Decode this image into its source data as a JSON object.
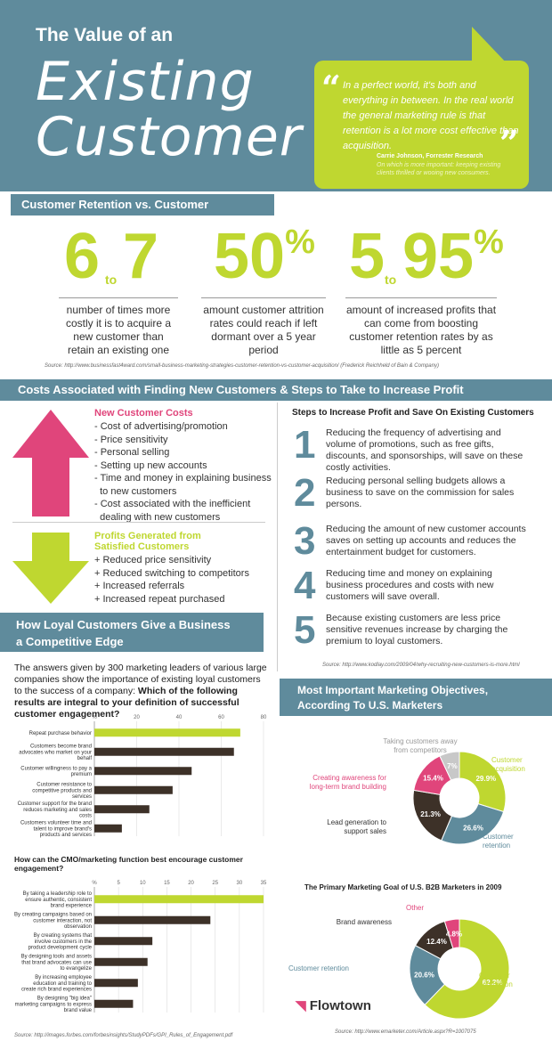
{
  "header": {
    "title_small": "The Value of an",
    "title_line1": "Existing",
    "title_line2": "Customer",
    "quote": "In a perfect world, it's both and everything in between. In the real world the general marketing rule is that retention is a lot more cost effective than acquisition.",
    "author": "Carrie Johnson, Forrester Research",
    "author_sub": "On which is more important: keeping existing clients thrilled or wooing new consumers."
  },
  "section1": {
    "title": "Customer Retention vs. Customer Acquisition",
    "stats": [
      {
        "a": "6",
        "to": "to",
        "b": "7",
        "desc": "number of times more costly it is to acquire a new customer than retain an existing one"
      },
      {
        "a": "50",
        "pct": "%",
        "desc": "amount customer attrition rates could reach if left dormant over a 5 year period"
      },
      {
        "a": "5",
        "to": "to",
        "b": "95",
        "pct": "%",
        "desc": "amount of increased profits that can come from boosting customer retention rates by as little as 5 percent"
      }
    ],
    "source": "Source: http://www.businessfast4ward.com/small-business-marketing-strategies-customer-retention-vs-customer-acquisition/ (Frederick Reichheld of Bain & Company)"
  },
  "section2": {
    "title": "Costs Associated with Finding New Customers & Steps to Take to Increase Profit",
    "costs_head": "New Customer Costs",
    "costs": [
      "- Cost of advertising/promotion",
      "- Price sensitivity",
      "- Personal selling",
      "- Setting up new accounts",
      "- Time and money in explaining business",
      "  to new customers",
      "- Cost associated with the inefficient",
      "  dealing with new customers"
    ],
    "profits_head1": "Profits Generated from",
    "profits_head2": "Satisfied Customers",
    "profits": [
      "+ Reduced price sensitivity",
      "+ Reduced switching to competitors",
      "+ Increased referrals",
      "+ Increased repeat purchased"
    ],
    "steps_title": "Steps to Increase Profit and Save On Existing Customers",
    "steps": [
      {
        "n": "1",
        "t": "Reducing the frequency of advertising and volume of promotions, such as free gifts, discounts, and sponsorships, will save on these costly activities."
      },
      {
        "n": "2",
        "t": "Reducing personal selling budgets allows a business to save on the commission for sales persons."
      },
      {
        "n": "3",
        "t": "Reducing the amount of new customer accounts saves on setting up accounts and reduces the entertainment budget for customers."
      },
      {
        "n": "4",
        "t": "Reducing time and money on explaining business procedures and costs with new customers will save overall."
      },
      {
        "n": "5",
        "t": "Because existing customers are less price sensitive revenues increase by charging the premium to loyal customers."
      }
    ],
    "steps_source": "Source: http://www.kodlay.com/2009/04/why-recruiting-new-customers-is-more.html"
  },
  "section3": {
    "title1": "How Loyal Customers Give a Business",
    "title2": "a Competitive Edge",
    "intro": "The answers given by 300 marketing leaders of various large companies show the importance of existing loyal customers to the success of a company: ",
    "intro_bold": "Which of the following results are integral to your definition of successful customer engagement?",
    "chart2_title": "How can the CMO/marketing function best encourage customer engagement?",
    "source": "Source: http://images.forbes.com/forbesinsights/StudyPDFs/GPI_Rules_of_Engagement.pdf"
  },
  "section4": {
    "title1": "Most Important Marketing Objectives,",
    "title2": "According To U.S. Marketers",
    "pie2_title": "The Primary Marketing Goal of U.S. B2B Marketers in 2009",
    "logo": "Flowtown",
    "source": "Source: http://www.emarketer.com/Article.aspx?R=1007075"
  },
  "colors": {
    "teal": "#5f8b9c",
    "lime": "#bfd730",
    "pink": "#e0457b",
    "dark": "#3d3128",
    "grey": "#c8c8c8"
  },
  "chart_data": [
    {
      "type": "bar",
      "orientation": "horizontal",
      "x_ticks": [
        "%",
        "20",
        "40",
        "60",
        "80"
      ],
      "xlim": [
        0,
        80
      ],
      "categories": [
        "Repeat purchase behavior",
        "Customers become brand advocates who market on your behalf",
        "Customer willingness to pay a premium",
        "Customer resistance to competitive products and services",
        "Customer support for the brand reduces marketing and sales costs",
        "Customers volunteer time and talent to improve brand's products and services"
      ],
      "values": [
        69,
        66,
        46,
        37,
        26,
        13
      ],
      "highlight_index": 0
    },
    {
      "type": "bar",
      "orientation": "horizontal",
      "x_ticks": [
        "%",
        "5",
        "10",
        "15",
        "20",
        "25",
        "30",
        "35"
      ],
      "xlim": [
        0,
        35
      ],
      "categories": [
        "By taking a leadership role to ensure authentic, consistent brand experience",
        "By creating campaigns based on customer interaction, not observation",
        "By creating systems that involve customers in the product development cycle",
        "By designing tools and assets that brand advocates can use to evangelize",
        "By increasing employee education and training to create rich brand experiences",
        "By designing \"big idea\" marketing campaigns to express brand value"
      ],
      "values": [
        35,
        24,
        12,
        11,
        9,
        8
      ],
      "highlight_index": 0
    },
    {
      "type": "pie",
      "style": "donut",
      "slices": [
        {
          "label": "Customer acquisition",
          "value": 29.9,
          "text": "29.9%",
          "color": "#bfd730"
        },
        {
          "label": "Customer retention",
          "value": 26.6,
          "text": "26.6%",
          "color": "#5f8b9c"
        },
        {
          "label": "Lead generation to support sales",
          "value": 21.3,
          "text": "21.3%",
          "color": "#3d3128"
        },
        {
          "label": "Creating awareness for long-term brand building",
          "value": 15.4,
          "text": "15.4%",
          "color": "#e0457b"
        },
        {
          "label": "Taking customers away from competitors",
          "value": 7,
          "text": "7%",
          "color": "#c8c8c8"
        }
      ]
    },
    {
      "type": "pie",
      "style": "donut",
      "slices": [
        {
          "label": "Customer acquisition",
          "value": 62.2,
          "text": "62.2%",
          "color": "#bfd730"
        },
        {
          "label": "Customer retention",
          "value": 20.6,
          "text": "20.6%",
          "color": "#5f8b9c"
        },
        {
          "label": "Brand awareness",
          "value": 12.4,
          "text": "12.4%",
          "color": "#3d3128"
        },
        {
          "label": "Other",
          "value": 4.8,
          "text": "4.8%",
          "color": "#e0457b"
        }
      ]
    }
  ]
}
